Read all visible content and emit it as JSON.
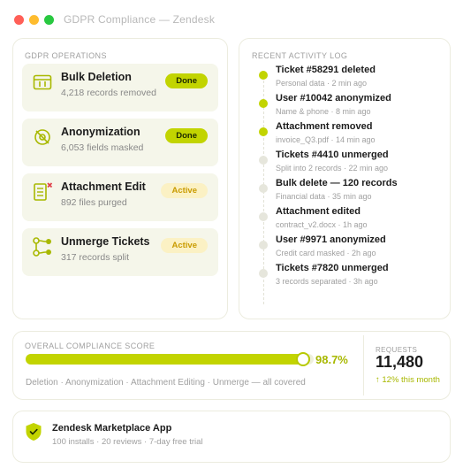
{
  "window": {
    "title": "GDPR Compliance — Zendesk"
  },
  "operations": {
    "label": "GDPR OPERATIONS",
    "items": [
      {
        "title": "Bulk Deletion",
        "sub": "4,218 records removed",
        "status": "Done",
        "icon": "calendar-grid-icon"
      },
      {
        "title": "Anonymization",
        "sub": "6,053 fields masked",
        "status": "Done",
        "icon": "eye-slash-icon"
      },
      {
        "title": "Attachment Edit",
        "sub": "892 files purged",
        "status": "Active",
        "icon": "document-x-icon"
      },
      {
        "title": "Unmerge Tickets",
        "sub": "317 records split",
        "status": "Active",
        "icon": "branch-split-icon"
      }
    ]
  },
  "activity": {
    "label": "RECENT ACTIVITY LOG",
    "items": [
      {
        "title": "Ticket #58291 deleted",
        "sub": "Personal data · 2 min ago",
        "highlight": true
      },
      {
        "title": "User #10042 anonymized",
        "sub": "Name & phone · 8 min ago",
        "highlight": true
      },
      {
        "title": "Attachment removed",
        "sub": "invoice_Q3.pdf · 14 min ago",
        "highlight": true
      },
      {
        "title": "Tickets #4410 unmerged",
        "sub": "Split into 2 records · 22 min ago",
        "highlight": false
      },
      {
        "title": "Bulk delete — 120 records",
        "sub": "Financial data · 35 min ago",
        "highlight": false
      },
      {
        "title": "Attachment edited",
        "sub": "contract_v2.docx · 1h ago",
        "highlight": false
      },
      {
        "title": "User #9971 anonymized",
        "sub": "Credit card masked · 2h ago",
        "highlight": false
      },
      {
        "title": "Tickets #7820 unmerged",
        "sub": "3 records separated · 3h ago",
        "highlight": false
      }
    ]
  },
  "score": {
    "label": "OVERALL COMPLIANCE SCORE",
    "value": 98.7,
    "display": "98.7%",
    "note": "Deletion · Anonymization · Attachment Editing · Unmerge — all covered"
  },
  "requests": {
    "label": "REQUESTS",
    "value": "11,480",
    "delta": "↑ 12% this month"
  },
  "marketplace": {
    "title": "Zendesk Marketplace App",
    "sub": "100 installs · 20 reviews · 7-day free trial",
    "icon": "shield-check-icon"
  },
  "colors": {
    "accent": "#c2d400",
    "accent_text": "#a8b800",
    "done_badge": "#c2d400",
    "active_badge_bg": "#fbf1c4",
    "active_badge_text": "#c99b00",
    "card_bg": "#f5f6ea"
  }
}
